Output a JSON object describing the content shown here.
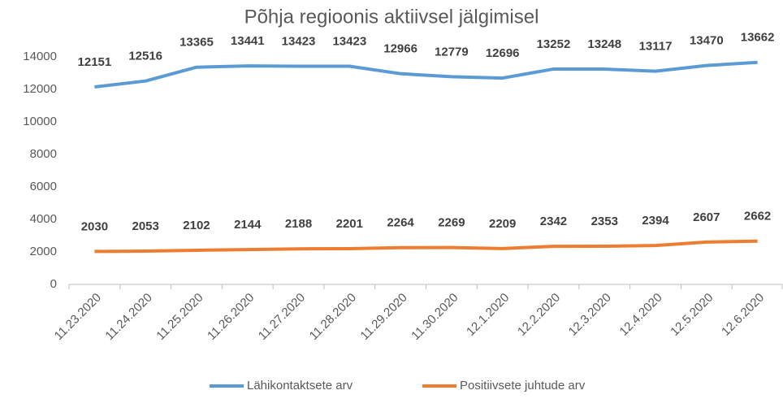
{
  "chart_data": {
    "type": "line",
    "title": "Põhja regioonis aktiivsel jälgimisel",
    "categories": [
      "11.23.2020",
      "11.24.2020",
      "11.25.2020",
      "11.26.2020",
      "11.27.2020",
      "11.28.2020",
      "11.29.2020",
      "11.30.2020",
      "12.1.2020",
      "12.2.2020",
      "12.3.2020",
      "12.4.2020",
      "12.5.2020",
      "12.6.2020"
    ],
    "series": [
      {
        "name": "Lähikontaktsete arv",
        "color": "#5b9bd5",
        "values": [
          12151,
          12516,
          13365,
          13441,
          13423,
          13423,
          12966,
          12779,
          12696,
          13252,
          13248,
          13117,
          13470,
          13662
        ]
      },
      {
        "name": "Positiivsete juhtude arv",
        "color": "#ed7d31",
        "values": [
          2030,
          2053,
          2102,
          2144,
          2188,
          2201,
          2264,
          2269,
          2209,
          2342,
          2353,
          2394,
          2607,
          2662
        ]
      }
    ],
    "ylim": [
      0,
      14000
    ],
    "yticks": [
      0,
      2000,
      4000,
      6000,
      8000,
      10000,
      12000,
      14000
    ],
    "grid": false,
    "legend": "bottom"
  }
}
